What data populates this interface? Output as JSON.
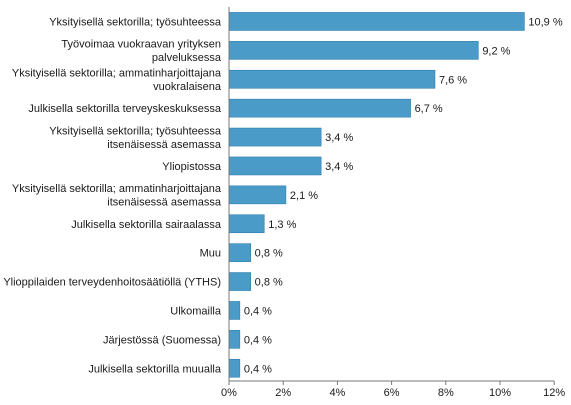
{
  "chart_data": {
    "type": "bar",
    "orientation": "horizontal",
    "categories": [
      [
        "Yksityisellä sektorilla; työsuhteessa"
      ],
      [
        "Työvoimaa vuokraavan yrityksen",
        "palveluksessa"
      ],
      [
        "Yksityisellä sektorilla; ammatinharjoittajana",
        "vuokralaisena"
      ],
      [
        "Julkisella sektorilla terveyskeskuksessa"
      ],
      [
        "Yksityisellä sektorilla; työsuhteessa",
        "itsenäisessä asemassa"
      ],
      [
        "Yliopistossa"
      ],
      [
        "Yksityisellä sektorilla; ammatinharjoittajana",
        "itsenäisessä asemassa"
      ],
      [
        "Julkisella sektorilla sairaalassa"
      ],
      [
        "Muu"
      ],
      [
        "Ylioppilaiden terveydenhoitosäätiöllä (YTHS)"
      ],
      [
        "Ulkomailla"
      ],
      [
        "Järjestössä (Suomessa)"
      ],
      [
        "Julkisella sektorilla muualla"
      ]
    ],
    "values": [
      10.9,
      9.2,
      7.6,
      6.7,
      3.4,
      3.4,
      2.1,
      1.3,
      0.8,
      0.8,
      0.4,
      0.4,
      0.4
    ],
    "value_labels": [
      "10,9 %",
      "9,2 %",
      "7,6 %",
      "6,7 %",
      "3,4 %",
      "3,4 %",
      "2,1 %",
      "1,3 %",
      "0,8 %",
      "0,8 %",
      "0,4 %",
      "0,4 %",
      "0,4 %"
    ],
    "xlim": [
      0,
      12
    ],
    "x_ticks": [
      0,
      2,
      4,
      6,
      8,
      10,
      12
    ],
    "x_tick_labels": [
      "0%",
      "2%",
      "4%",
      "6%",
      "8%",
      "10%",
      "12%"
    ],
    "grid": false,
    "bar_color": "#4a9bc7",
    "bar_edge_color": "#2f7fae"
  }
}
